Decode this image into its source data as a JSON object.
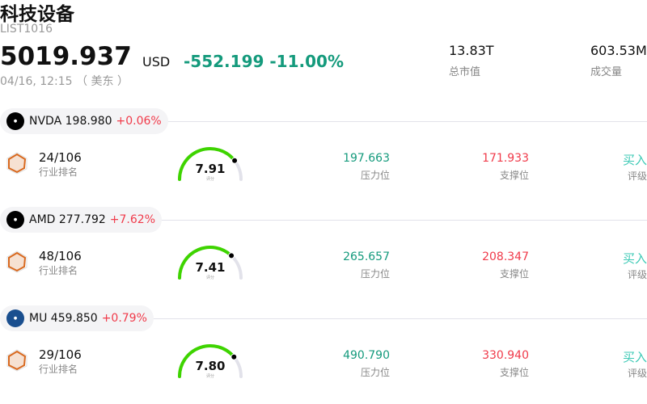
{
  "header": {
    "title": "科技设备",
    "code": "LIST1016",
    "price": "5019.937",
    "currency": "USD",
    "change": "-552.199",
    "change_pct": "-11.00%",
    "time": "04/16, 12:15 （ 美东 ）",
    "market_cap": {
      "value": "13.83T",
      "label": "总市值"
    },
    "volume": {
      "value": "603.53M",
      "label": "成交量"
    }
  },
  "colors": {
    "down": "#149a7c",
    "up": "#f03a4a",
    "gauge": "#3ed400",
    "buy": "#3cc9b5"
  },
  "stocks": [
    {
      "ticker": "NVDA",
      "price": "198.980",
      "change": "+0.06%",
      "logo_color": "#000",
      "rank": "24/106",
      "rank_label": "行业排名",
      "score": "7.91",
      "score_label": "评分",
      "score_fraction": 0.791,
      "resistance": "197.663",
      "resistance_label": "压力位",
      "support": "171.933",
      "support_label": "支撑位",
      "rating": "买入",
      "rating_label": "评级"
    },
    {
      "ticker": "AMD",
      "price": "277.792",
      "change": "+7.62%",
      "logo_color": "#000",
      "rank": "48/106",
      "rank_label": "行业排名",
      "score": "7.41",
      "score_label": "评分",
      "score_fraction": 0.741,
      "resistance": "265.657",
      "resistance_label": "压力位",
      "support": "208.347",
      "support_label": "支撑位",
      "rating": "买入",
      "rating_label": "评级"
    },
    {
      "ticker": "MU",
      "price": "459.850",
      "change": "+0.79%",
      "logo_color": "#1a4f8f",
      "rank": "29/106",
      "rank_label": "行业排名",
      "score": "7.80",
      "score_label": "评分",
      "score_fraction": 0.78,
      "resistance": "490.790",
      "resistance_label": "压力位",
      "support": "330.940",
      "support_label": "支撑位",
      "rating": "买入",
      "rating_label": "评级"
    }
  ]
}
